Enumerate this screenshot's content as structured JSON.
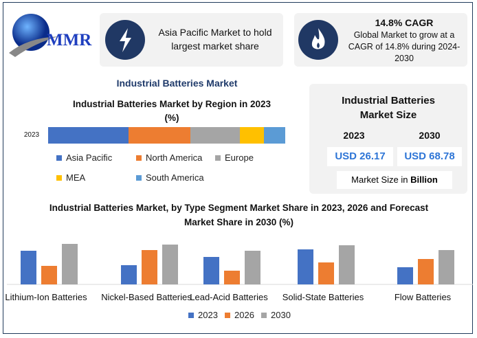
{
  "logo": {
    "text": "MMR"
  },
  "card1": {
    "text": "Asia Pacific Market to hold largest market share",
    "icon": "lightning-icon"
  },
  "card2": {
    "title": "14.8% CAGR",
    "text": "Global Market to grow at a CAGR of 14.8% during 2024-2030",
    "icon": "flame-icon"
  },
  "main_title": "Industrial Batteries Market",
  "size_card": {
    "title": "Industrial Batteries Market Size",
    "year1": "2023",
    "year2": "2030",
    "value1": "USD 26.17",
    "value2": "USD 68.78",
    "note_prefix": "Market Size in ",
    "note_bold": "Billion"
  },
  "colors": {
    "blue": "#4472c4",
    "orange": "#ed7d31",
    "gray": "#a5a5a5",
    "yellow": "#ffc000",
    "lightblue": "#5b9bd5"
  },
  "chart_data": [
    {
      "type": "bar",
      "orientation": "horizontal-stacked",
      "title": "Industrial Batteries Market by Region in 2023 (%)",
      "categories": [
        "2023"
      ],
      "series": [
        {
          "name": "Asia Pacific",
          "values": [
            34
          ]
        },
        {
          "name": "North America",
          "values": [
            26
          ]
        },
        {
          "name": "Europe",
          "values": [
            21
          ]
        },
        {
          "name": "MEA",
          "values": [
            10
          ]
        },
        {
          "name": "South America",
          "values": [
            9
          ]
        }
      ],
      "legend": "bottom"
    },
    {
      "type": "bar",
      "title": "Industrial Batteries Market, by Type Segment Market Share in 2023, 2026 and Forecast Market Share in 2030 (%)",
      "categories": [
        "Lithium-Ion Batteries",
        "Nickel-Based Batteries",
        "Lead-Acid Batteries",
        "Solid-State Batteries",
        "Flow Batteries"
      ],
      "series": [
        {
          "name": "2023",
          "values": [
            49,
            28,
            40,
            51,
            25
          ]
        },
        {
          "name": "2026",
          "values": [
            27,
            50,
            20,
            32,
            37
          ]
        },
        {
          "name": "2030",
          "values": [
            59,
            58,
            49,
            57,
            50
          ]
        }
      ],
      "ylim": [
        0,
        60
      ],
      "legend": "bottom"
    }
  ]
}
